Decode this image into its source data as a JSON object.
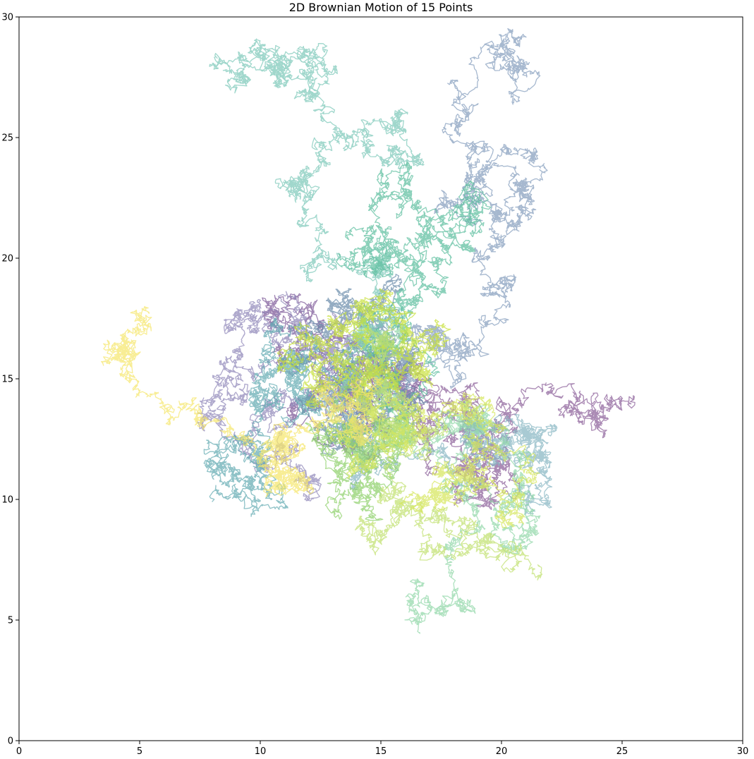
{
  "chart_data": {
    "type": "line",
    "title": "2D Brownian Motion of 15 Points",
    "xlabel": "",
    "ylabel": "",
    "xlim": [
      0,
      30
    ],
    "ylim": [
      0,
      30
    ],
    "x_ticks": [
      0,
      5,
      10,
      15,
      20,
      25,
      30
    ],
    "y_ticks": [
      0,
      5,
      10,
      15,
      20,
      25,
      30
    ],
    "grid": false,
    "legend": "none",
    "colormap": "viridis",
    "start": [
      15,
      15
    ],
    "steps": 3200,
    "step_size": 0.09,
    "series": [
      {
        "color": "#8b5e99",
        "end": [
          25.3,
          14.0
        ]
      },
      {
        "color": "#7a5596",
        "end": [
          11.5,
          16.5
        ]
      },
      {
        "color": "#8f86b8",
        "end": [
          7.6,
          14.0
        ]
      },
      {
        "color": "#849cbc",
        "end": [
          20.7,
          29.2
        ]
      },
      {
        "color": "#6b8cab",
        "end": [
          12.8,
          12.6
        ]
      },
      {
        "color": "#86b6c2",
        "end": [
          22.0,
          11.5
        ]
      },
      {
        "color": "#63aab2",
        "end": [
          8.0,
          9.9
        ]
      },
      {
        "color": "#7cc7b8",
        "end": [
          10.4,
          28.2
        ]
      },
      {
        "color": "#5cbe9e",
        "end": [
          13.8,
          21.0
        ]
      },
      {
        "color": "#90d7a8",
        "end": [
          16.6,
          4.5
        ]
      },
      {
        "color": "#8ed06a",
        "end": [
          14.8,
          12.5
        ]
      },
      {
        "color": "#c1e16f",
        "end": [
          21.5,
          7.3
        ]
      },
      {
        "color": "#d6e65c",
        "end": [
          17.5,
          9.6
        ]
      },
      {
        "color": "#c7e03a",
        "end": [
          15.5,
          15.3
        ]
      },
      {
        "color": "#f5e66b",
        "end": [
          5.4,
          17.7
        ]
      }
    ]
  }
}
